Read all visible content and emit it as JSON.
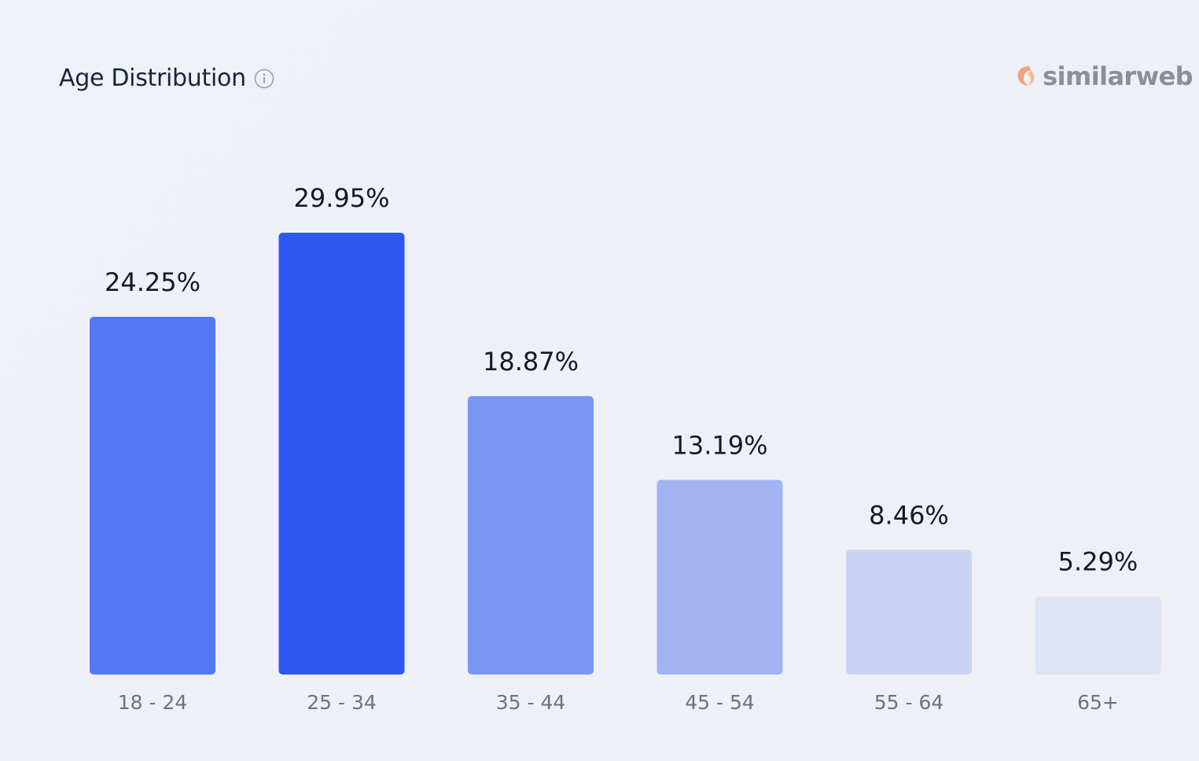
{
  "header": {
    "title": "Age Distribution",
    "info_icon": "info-icon"
  },
  "brand": {
    "name": "similarweb",
    "logo_icon": "similarweb-logo-icon",
    "logo_color": "#f0a47c"
  },
  "chart_data": {
    "type": "bar",
    "categories": [
      "18 - 24",
      "25 - 34",
      "35 - 44",
      "45 - 54",
      "55 - 64",
      "65+"
    ],
    "values": [
      24.25,
      29.95,
      18.87,
      13.19,
      8.46,
      5.29
    ],
    "value_labels": [
      "24.25%",
      "29.95%",
      "18.87%",
      "13.19%",
      "8.46%",
      "5.29%"
    ],
    "colors": [
      "#5378f2",
      "#2d57f2",
      "#7a96f0",
      "#a2b4f2",
      "#c9d4f4",
      "#dde3f3"
    ],
    "unit": "%",
    "ylim": [
      0,
      29.95
    ],
    "grid": false,
    "legend": "none"
  }
}
